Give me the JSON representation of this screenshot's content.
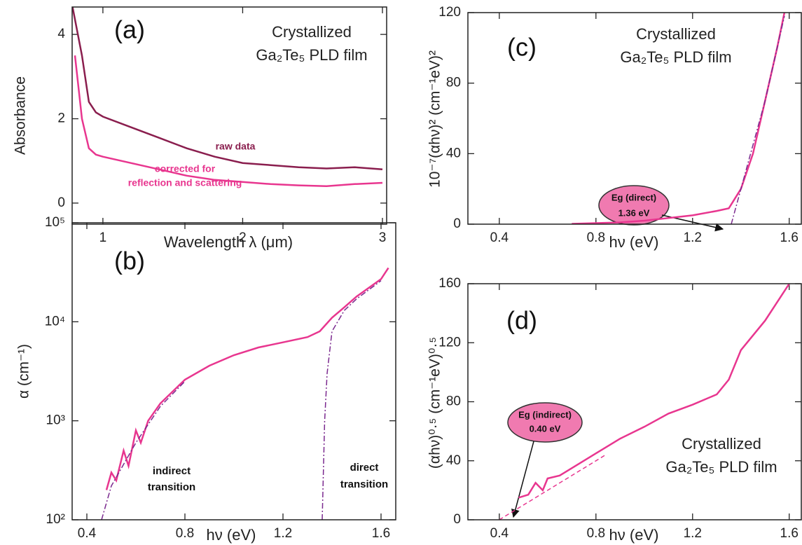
{
  "chart_data": [
    {
      "type": "line",
      "x_label": "Wavelength λ (μm)",
      "y_label": "Absorbance",
      "xlim": [
        0.78,
        3.03
      ],
      "xticks": [
        1,
        2,
        3
      ],
      "ylim": [
        -0.5,
        4.65
      ],
      "yticks": [
        0,
        2,
        4
      ],
      "annotations": [
        "(a)",
        "Crystallized",
        "Ga₂Te₅ PLD film",
        "raw data",
        "corrected for",
        "reflection and scattering"
      ],
      "series": [
        {
          "color": "#8a1e4e",
          "style": "solid",
          "x": [
            0.78,
            0.85,
            0.9,
            0.95,
            1.0,
            1.2,
            1.4,
            1.6,
            1.8,
            2.0,
            2.2,
            2.4,
            2.6,
            2.8,
            3.0
          ],
          "values": [
            4.7,
            3.5,
            2.4,
            2.15,
            2.05,
            1.8,
            1.55,
            1.3,
            1.1,
            0.95,
            0.9,
            0.85,
            0.82,
            0.85,
            0.8
          ]
        },
        {
          "color": "#e8368f",
          "style": "solid",
          "x": [
            0.8,
            0.85,
            0.9,
            0.95,
            1.0,
            1.2,
            1.4,
            1.6,
            1.8,
            2.0,
            2.2,
            2.4,
            2.6,
            2.8,
            3.0
          ],
          "values": [
            3.5,
            2.0,
            1.3,
            1.15,
            1.1,
            0.95,
            0.8,
            0.65,
            0.55,
            0.5,
            0.45,
            0.42,
            0.4,
            0.45,
            0.48
          ]
        }
      ]
    },
    {
      "type": "line",
      "x_label": "hν (eV)",
      "y_label": "α (cm⁻¹)",
      "yscale": "log",
      "xlim": [
        0.34,
        1.66
      ],
      "xticks": [
        0.4,
        0.8,
        1.2,
        1.6
      ],
      "ylim": [
        100,
        100000
      ],
      "yticks": [
        {
          "value": 100,
          "label": "10²"
        },
        {
          "value": 1000,
          "label": "10³"
        },
        {
          "value": 10000,
          "label": "10⁴"
        },
        {
          "value": 100000,
          "label": "10⁵"
        }
      ],
      "annotations": [
        "(b)",
        "indirect",
        "transition",
        "direct",
        "transition"
      ],
      "series": [
        {
          "color": "#e8368f",
          "style": "solid",
          "x": [
            0.48,
            0.5,
            0.52,
            0.55,
            0.57,
            0.6,
            0.62,
            0.65,
            0.7,
            0.8,
            0.9,
            1.0,
            1.1,
            1.2,
            1.3,
            1.35,
            1.4,
            1.45,
            1.5,
            1.55,
            1.6,
            1.63
          ],
          "values": [
            200,
            300,
            250,
            500,
            350,
            800,
            600,
            1000,
            1500,
            2600,
            3600,
            4600,
            5500,
            6200,
            7000,
            8000,
            11000,
            14000,
            18000,
            22000,
            27000,
            35000
          ]
        },
        {
          "color": "#7b2a8f",
          "style": "dashdot",
          "x": [
            0.46,
            0.5,
            0.6,
            0.7,
            0.8
          ],
          "values": [
            100,
            220,
            600,
            1400,
            2500
          ]
        },
        {
          "color": "#7b2a8f",
          "style": "dashdot",
          "x": [
            1.36,
            1.37,
            1.38,
            1.4,
            1.45,
            1.5,
            1.6
          ],
          "values": [
            100,
            1000,
            3000,
            8000,
            13000,
            17000,
            26000
          ]
        }
      ]
    },
    {
      "type": "line",
      "x_label": "hν (eV)",
      "y_label": "10⁻⁷(αhν)² (cm⁻¹eV)²",
      "xlim": [
        0.27,
        1.65
      ],
      "xticks": [
        0.4,
        0.8,
        1.2,
        1.6
      ],
      "ylim": [
        0,
        120
      ],
      "yticks": [
        0,
        40,
        80,
        120
      ],
      "annotations": [
        "(c)",
        "Crystallized",
        "Ga₂Te₅ PLD film",
        "Eg (direct)",
        "1.36 eV"
      ],
      "series": [
        {
          "color": "#e8368f",
          "style": "solid",
          "x": [
            0.7,
            0.9,
            1.0,
            1.1,
            1.2,
            1.3,
            1.35,
            1.4,
            1.45,
            1.5,
            1.55,
            1.58
          ],
          "values": [
            0.2,
            1,
            2,
            3.5,
            5,
            7.5,
            9,
            20,
            40,
            70,
            100,
            120
          ]
        },
        {
          "color": "#7b2a8f",
          "style": "dashdot",
          "x": [
            1.36,
            1.4,
            1.5,
            1.58
          ],
          "values": [
            0,
            20,
            70,
            118
          ]
        }
      ]
    },
    {
      "type": "line",
      "x_label": "hν (eV)",
      "y_label": "(αhν)⁰·⁵ (cm⁻¹eV)⁰·⁵",
      "xlim": [
        0.27,
        1.65
      ],
      "xticks": [
        0.4,
        0.8,
        1.2,
        1.6
      ],
      "ylim": [
        0,
        160
      ],
      "yticks": [
        0,
        40,
        80,
        120,
        160
      ],
      "annotations": [
        "(d)",
        "Crystallized",
        "Ga₂Te₅ PLD film",
        "Eg (indirect)",
        "0.40 eV"
      ],
      "series": [
        {
          "color": "#e8368f",
          "style": "solid",
          "x": [
            0.48,
            0.52,
            0.55,
            0.58,
            0.6,
            0.65,
            0.7,
            0.8,
            0.9,
            1.0,
            1.1,
            1.2,
            1.3,
            1.35,
            1.4,
            1.5,
            1.6
          ],
          "values": [
            15,
            17,
            25,
            20,
            28,
            30,
            35,
            45,
            55,
            63,
            72,
            78,
            85,
            95,
            115,
            135,
            160
          ]
        },
        {
          "color": "#e8368f",
          "style": "dashed",
          "x": [
            0.4,
            0.8,
            0.84
          ],
          "values": [
            0,
            40,
            44
          ]
        }
      ]
    }
  ]
}
